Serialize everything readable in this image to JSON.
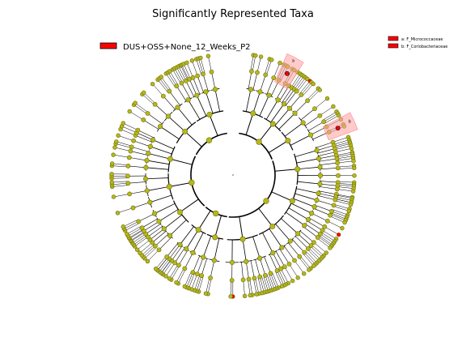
{
  "chart_data": {
    "type": "cladogram",
    "title": "Significantly Represented Taxa",
    "legend_group": {
      "label": "DUS+OSS+None_12_Weeks_P2",
      "color": "#ff0000"
    },
    "legend_taxa": [
      {
        "key": "a",
        "label": "a: F_Micrococcaceae",
        "color": "#ff0000"
      },
      {
        "key": "b",
        "label": "b: F_Coriobacteriaceae",
        "color": "#ff0000"
      }
    ],
    "highlighted_clades": [
      {
        "label": "a",
        "color": "#ff9e9e"
      },
      {
        "label": "b",
        "color": "#ff9e9e"
      }
    ],
    "node_colors": {
      "default_fill": "#b5b81a",
      "default_stroke": "#6f7010",
      "significant_fill": "#ff0000"
    },
    "levels": 6,
    "notes": ""
  }
}
